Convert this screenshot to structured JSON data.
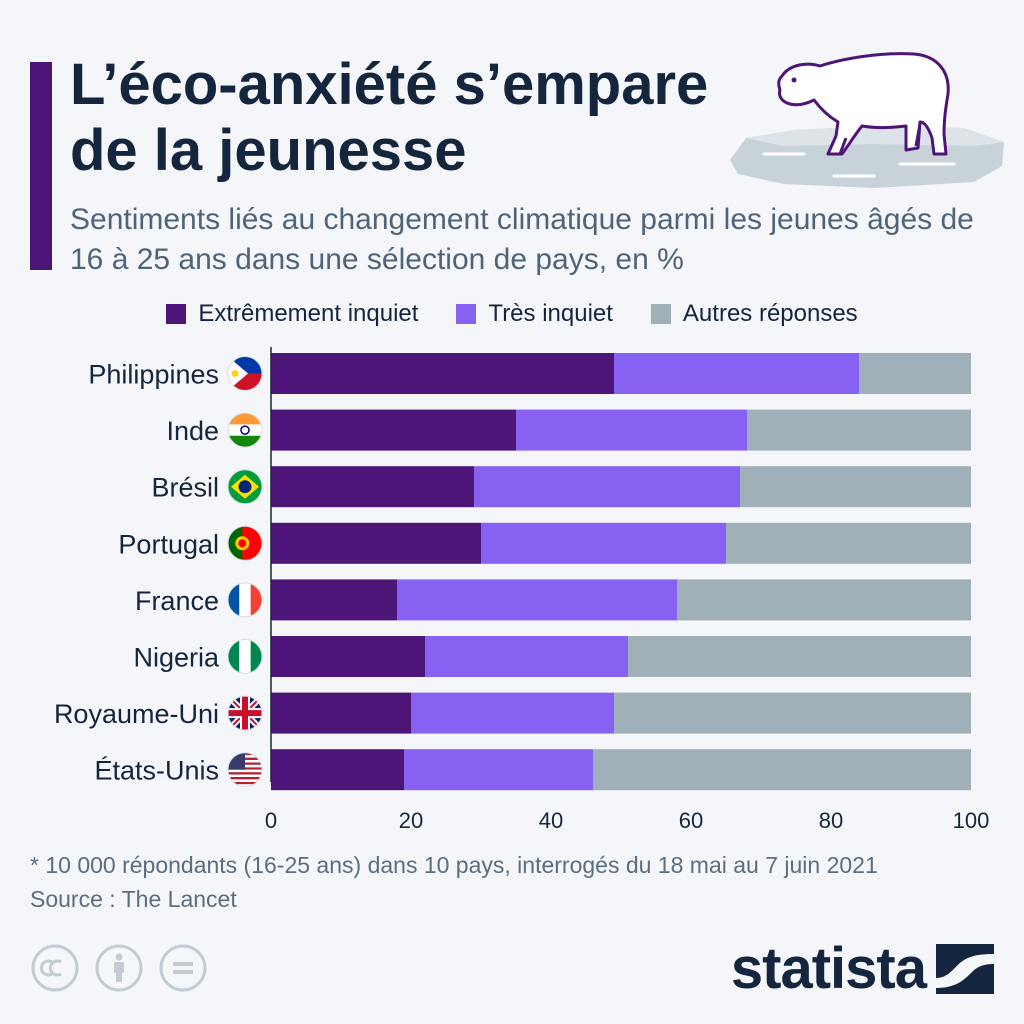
{
  "header": {
    "title_line1": "L’éco-anxiété s’empare",
    "title_line2": "de la jeunesse",
    "subtitle": "Sentiments liés au changement climatique parmi les jeunes âgés de 16 à 25 ans dans une sélection de pays, en %"
  },
  "illustration": "polar-bear-on-ice",
  "colors": {
    "accent": "#4d1578",
    "extremely_worried": "#4d1578",
    "very_worried": "#8661f2",
    "other": "#9fb0b8",
    "text_dark": "#14263d"
  },
  "chart_data": {
    "type": "bar",
    "orientation": "horizontal",
    "stacked": true,
    "categories": [
      "Philippines",
      "Inde",
      "Brésil",
      "Portugal",
      "France",
      "Nigeria",
      "Royaume-Uni",
      "États-Unis"
    ],
    "flags": [
      "philippines-flag",
      "india-flag",
      "brazil-flag",
      "portugal-flag",
      "france-flag",
      "nigeria-flag",
      "uk-flag",
      "usa-flag"
    ],
    "series": [
      {
        "name": "Extrêmement inquiet",
        "color": "#4d1578",
        "values": [
          49,
          35,
          29,
          30,
          18,
          22,
          20,
          19
        ]
      },
      {
        "name": "Très inquiet",
        "color": "#8661f2",
        "values": [
          35,
          33,
          38,
          35,
          40,
          29,
          29,
          27
        ]
      },
      {
        "name": "Autres réponses",
        "color": "#9fb0b8",
        "values": [
          16,
          32,
          33,
          35,
          42,
          49,
          51,
          54
        ]
      }
    ],
    "xlim": [
      0,
      100
    ],
    "xticks": [
      "0",
      "20",
      "40",
      "60",
      "80",
      "100"
    ],
    "legend_position": "top",
    "grid": false
  },
  "footer": {
    "note": "* 10 000 répondants (16-25 ans) dans 10 pays, interrogés du 18 mai au 7 juin 2021",
    "source": "Source : The Lancet",
    "license_icons": [
      "cc-icon",
      "attribution-icon",
      "no-derivatives-icon"
    ],
    "brand": "statista"
  }
}
